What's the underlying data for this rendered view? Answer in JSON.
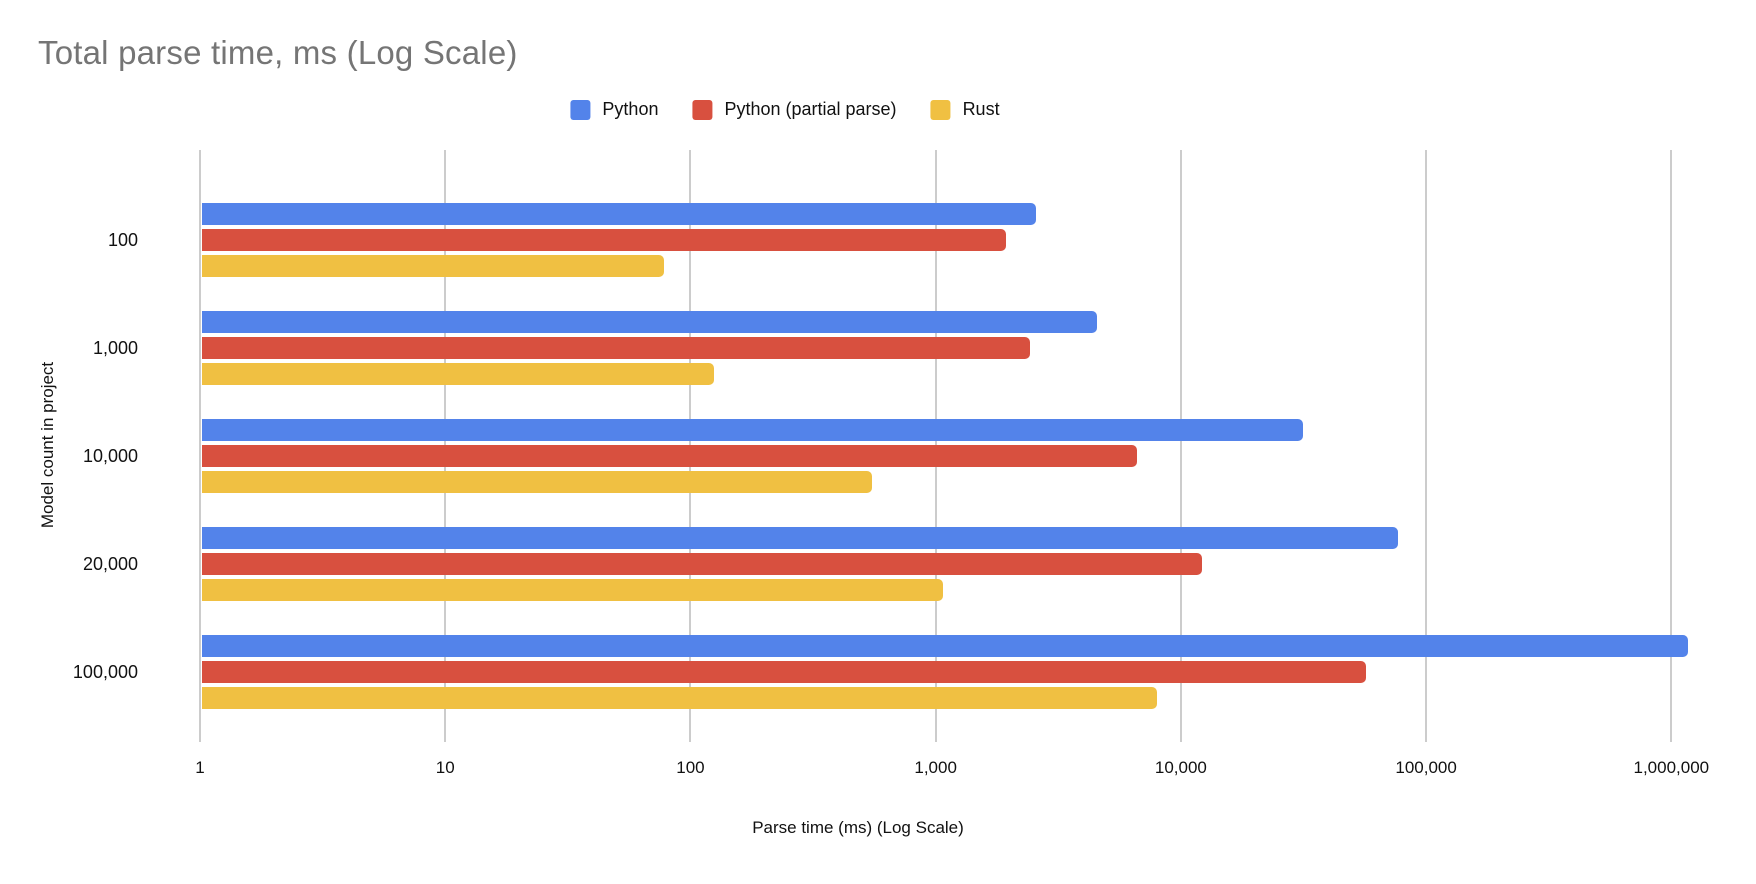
{
  "chart_data": {
    "type": "bar",
    "orientation": "horizontal",
    "title": "Total parse time, ms (Log Scale)",
    "xlabel": "Parse time (ms) (Log Scale)",
    "ylabel": "Model count in project",
    "x_scale": "log",
    "xlim": [
      1,
      1000000
    ],
    "x_ticks": [
      "1",
      "10",
      "100",
      "1,000",
      "10,000",
      "100,000",
      "1,000,000"
    ],
    "grid": true,
    "legend_position": "top",
    "categories": [
      "100",
      "1,000",
      "10,000",
      "20,000",
      "100,000"
    ],
    "series": [
      {
        "name": "Python",
        "color": "#5383EA",
        "values": [
          2570,
          4550,
          31500,
          77000,
          1170000
        ]
      },
      {
        "name": "Python (partial parse)",
        "color": "#D8503F",
        "values": [
          1940,
          2430,
          6600,
          12200,
          57000
        ]
      },
      {
        "name": "Rust",
        "color": "#F0C042",
        "values": [
          78,
          125,
          550,
          1070,
          8000
        ]
      }
    ]
  },
  "colors": {
    "title_text": "#757575",
    "axis_text": "#111111",
    "gridline": "#CCCCCC",
    "background": "#FFFFFF"
  }
}
